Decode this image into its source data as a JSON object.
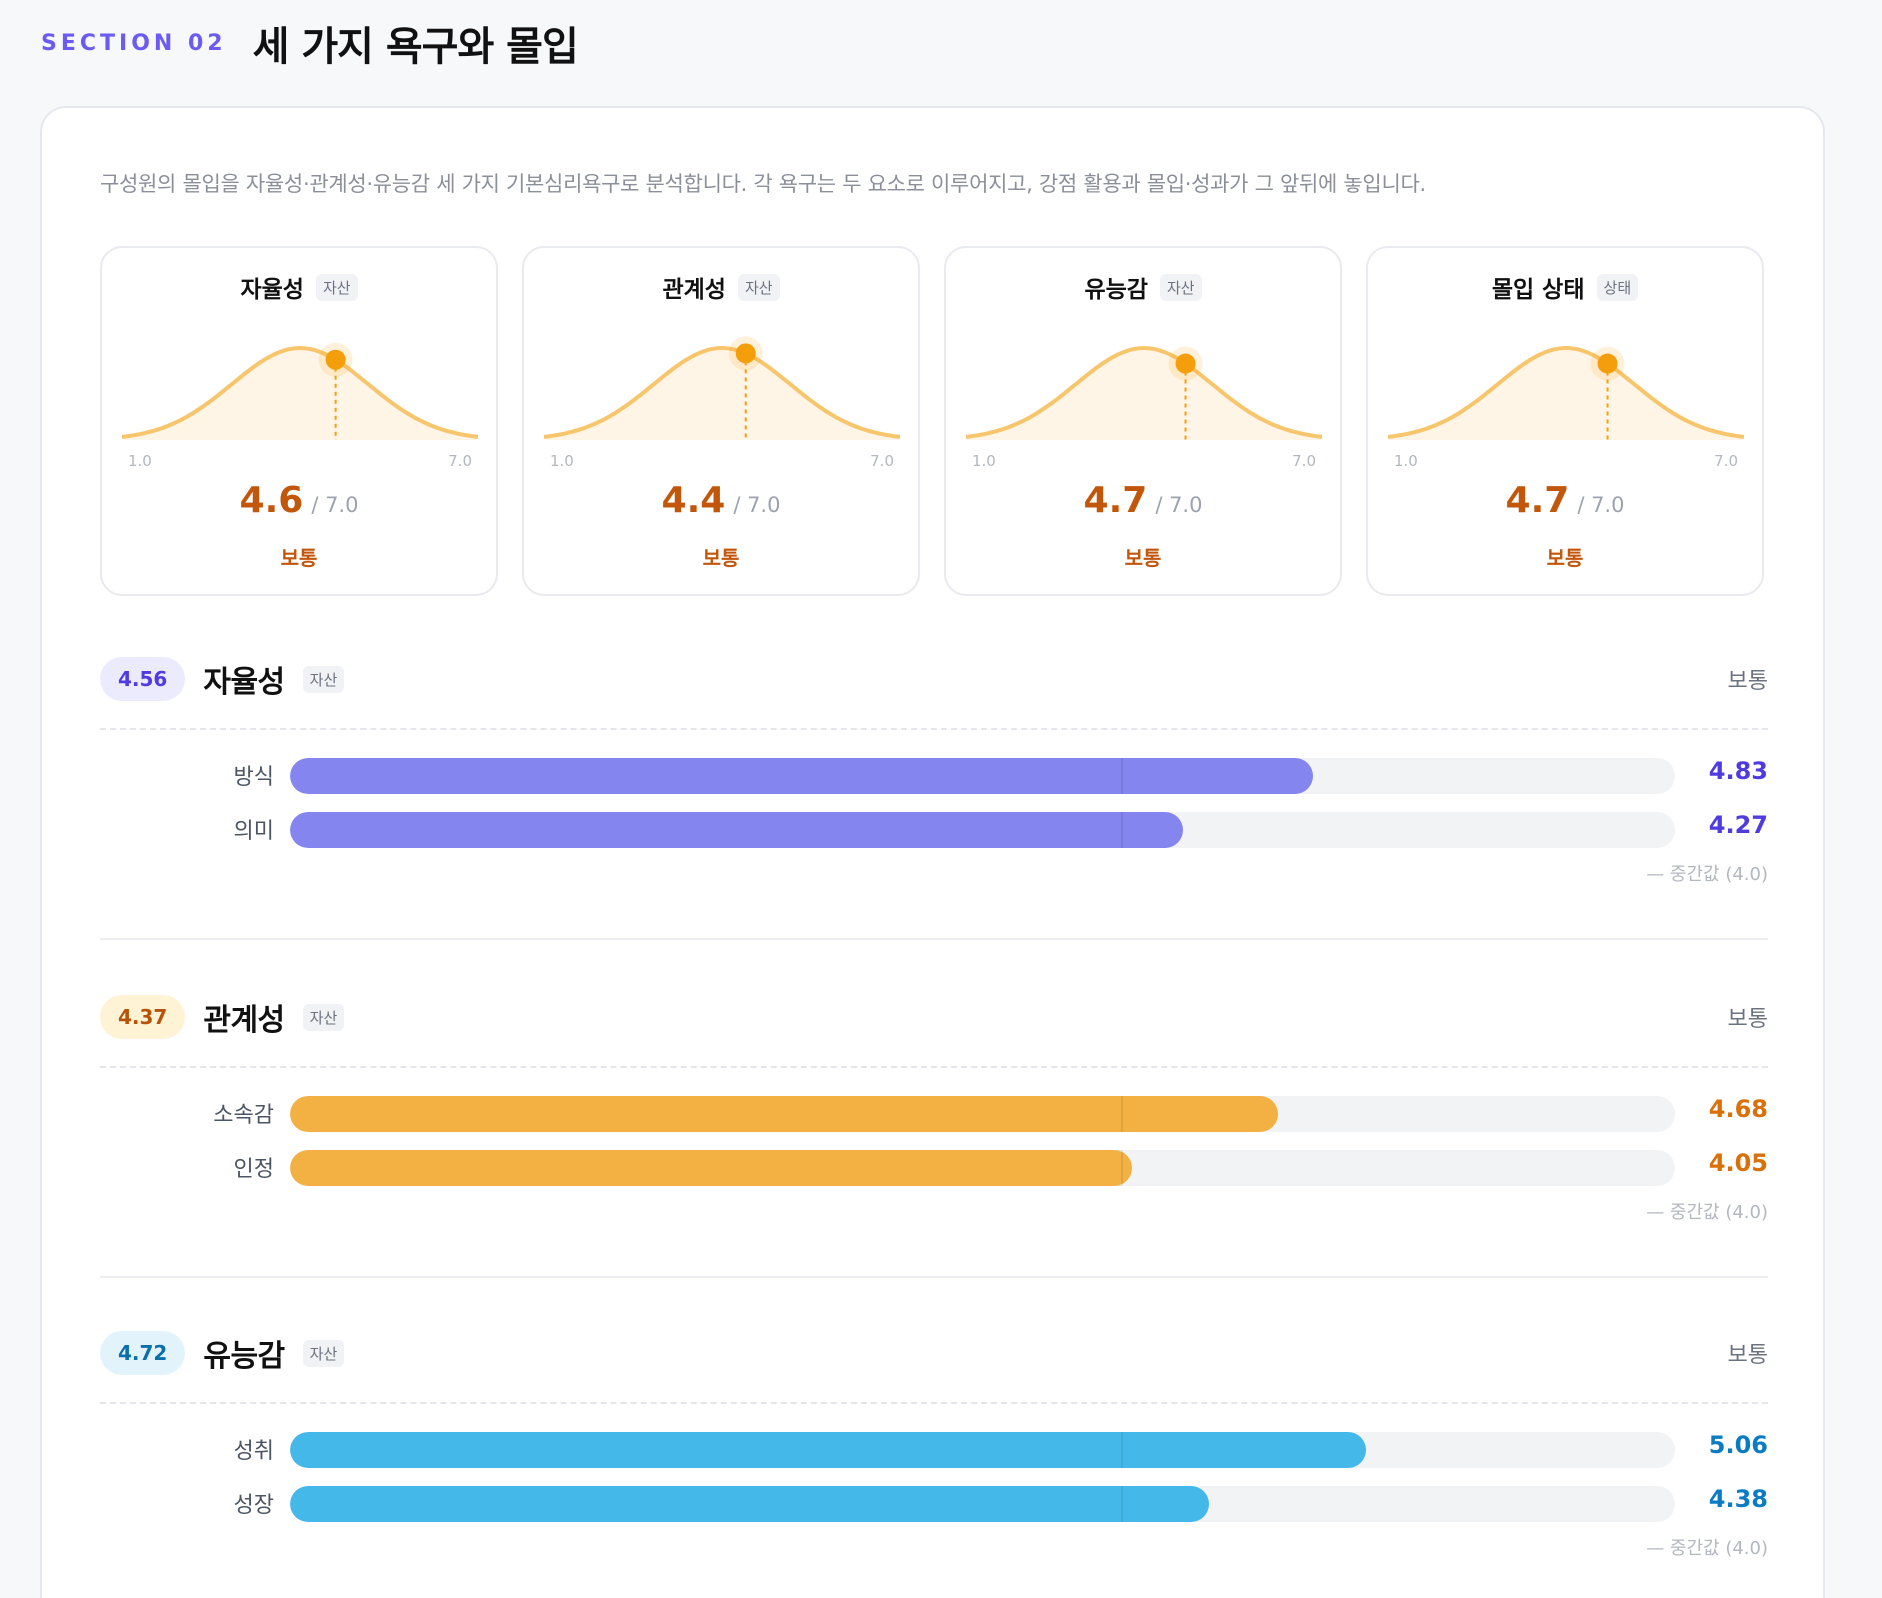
{
  "section": {
    "label": "SECTION 02",
    "title": "세 가지 욕구와 몰입"
  },
  "intro": "구성원의 몰입을 자율성·관계성·유능감 세 가지 기본심리욕구로 분석합니다. 각 욕구는 두 요소로 이루어지고, 강점 활용과 몰입·성과가 그 앞뒤에 놓입니다.",
  "colors": {
    "curve": "#f7c56b",
    "curve_fill": "#fff5e6",
    "marker": "#f59e0b",
    "score": "#c2570c",
    "autonomy": "#8585f0",
    "autonomy_text": "#4f3be0",
    "relatedness": "#f4b143",
    "relatedness_text": "#d9700a",
    "competence": "#45b8ea",
    "competence_text": "#0b7cc4"
  },
  "distributions": [
    {
      "name": "자율성",
      "tag": "자산",
      "score": 4.6,
      "score_label": "4.6",
      "max_label": "/ 7.0",
      "level": "보통",
      "axis_min": "1.0",
      "axis_max": "7.0"
    },
    {
      "name": "관계성",
      "tag": "자산",
      "score": 4.4,
      "score_label": "4.4",
      "max_label": "/ 7.0",
      "level": "보통",
      "axis_min": "1.0",
      "axis_max": "7.0"
    },
    {
      "name": "유능감",
      "tag": "자산",
      "score": 4.7,
      "score_label": "4.7",
      "max_label": "/ 7.0",
      "level": "보통",
      "axis_min": "1.0",
      "axis_max": "7.0"
    },
    {
      "name": "몰입 상태",
      "tag": "상태",
      "score": 4.7,
      "score_label": "4.7",
      "max_label": "/ 7.0",
      "level": "보통",
      "axis_min": "1.0",
      "axis_max": "7.0"
    }
  ],
  "scale": {
    "min": 1.0,
    "max": 7.0,
    "midpoint": 4.0
  },
  "needs": [
    {
      "score": "4.56",
      "name": "자율성",
      "tag": "자산",
      "level": "보통",
      "pill_bg": "#ebebfd",
      "pill_color": "#4f3be0",
      "color_key": "autonomy",
      "items": [
        {
          "label": "방식",
          "value": 4.83,
          "value_label": "4.83"
        },
        {
          "label": "의미",
          "value": 4.27,
          "value_label": "4.27"
        }
      ],
      "mid_note": "— 중간값 (4.0)"
    },
    {
      "score": "4.37",
      "name": "관계성",
      "tag": "자산",
      "level": "보통",
      "pill_bg": "#fff3d6",
      "pill_color": "#b45309",
      "color_key": "relatedness",
      "items": [
        {
          "label": "소속감",
          "value": 4.68,
          "value_label": "4.68"
        },
        {
          "label": "인정",
          "value": 4.05,
          "value_label": "4.05"
        }
      ],
      "mid_note": "— 중간값 (4.0)"
    },
    {
      "score": "4.72",
      "name": "유능감",
      "tag": "자산",
      "level": "보통",
      "pill_bg": "#e3f3fc",
      "pill_color": "#0b6fa8",
      "color_key": "competence",
      "items": [
        {
          "label": "성취",
          "value": 5.06,
          "value_label": "5.06"
        },
        {
          "label": "성장",
          "value": 4.38,
          "value_label": "4.38"
        }
      ],
      "mid_note": "— 중간값 (4.0)"
    }
  ]
}
